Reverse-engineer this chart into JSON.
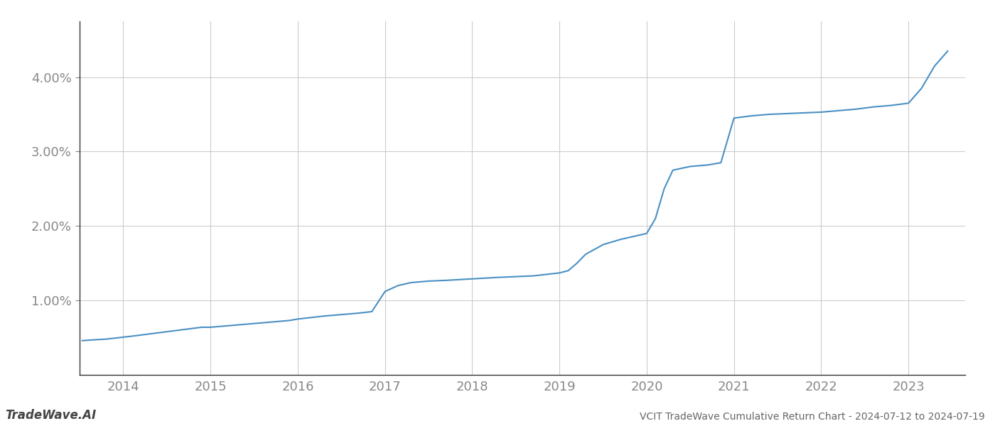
{
  "title": "VCIT TradeWave Cumulative Return Chart - 2024-07-12 to 2024-07-19",
  "watermark": "TradeWave.AI",
  "line_color": "#4a90c4",
  "background_color": "#ffffff",
  "grid_color": "#cccccc",
  "tick_color": "#888888",
  "x_years": [
    2014,
    2015,
    2016,
    2017,
    2018,
    2019,
    2020,
    2021,
    2022,
    2023
  ],
  "x_data": [
    2013.53,
    2013.65,
    2013.8,
    2013.95,
    2014.1,
    2014.3,
    2014.5,
    2014.7,
    2014.9,
    2015.0,
    2015.2,
    2015.5,
    2015.7,
    2015.9,
    2016.0,
    2016.15,
    2016.3,
    2016.5,
    2016.7,
    2016.85,
    2017.0,
    2017.15,
    2017.3,
    2017.5,
    2017.7,
    2017.85,
    2018.0,
    2018.15,
    2018.3,
    2018.5,
    2018.7,
    2018.85,
    2019.0,
    2019.1,
    2019.2,
    2019.3,
    2019.5,
    2019.7,
    2019.85,
    2020.0,
    2020.1,
    2020.2,
    2020.3,
    2020.5,
    2020.7,
    2020.85,
    2021.0,
    2021.2,
    2021.4,
    2021.6,
    2021.8,
    2022.0,
    2022.2,
    2022.4,
    2022.6,
    2022.8,
    2023.0,
    2023.15,
    2023.3,
    2023.45
  ],
  "y_data": [
    0.46,
    0.47,
    0.48,
    0.5,
    0.52,
    0.55,
    0.58,
    0.61,
    0.64,
    0.64,
    0.66,
    0.69,
    0.71,
    0.73,
    0.75,
    0.77,
    0.79,
    0.81,
    0.83,
    0.85,
    1.12,
    1.2,
    1.24,
    1.26,
    1.27,
    1.28,
    1.29,
    1.3,
    1.31,
    1.32,
    1.33,
    1.35,
    1.37,
    1.4,
    1.5,
    1.62,
    1.75,
    1.82,
    1.86,
    1.9,
    2.1,
    2.5,
    2.75,
    2.8,
    2.82,
    2.85,
    3.45,
    3.48,
    3.5,
    3.51,
    3.52,
    3.53,
    3.55,
    3.57,
    3.6,
    3.62,
    3.65,
    3.85,
    4.15,
    4.35
  ],
  "ylim": [
    0.0,
    4.75
  ],
  "yticks": [
    1.0,
    2.0,
    3.0,
    4.0
  ],
  "ytick_labels": [
    "1.00%",
    "2.00%",
    "3.00%",
    "4.00%"
  ],
  "line_width": 1.5,
  "figsize": [
    14,
    6
  ],
  "dpi": 100
}
